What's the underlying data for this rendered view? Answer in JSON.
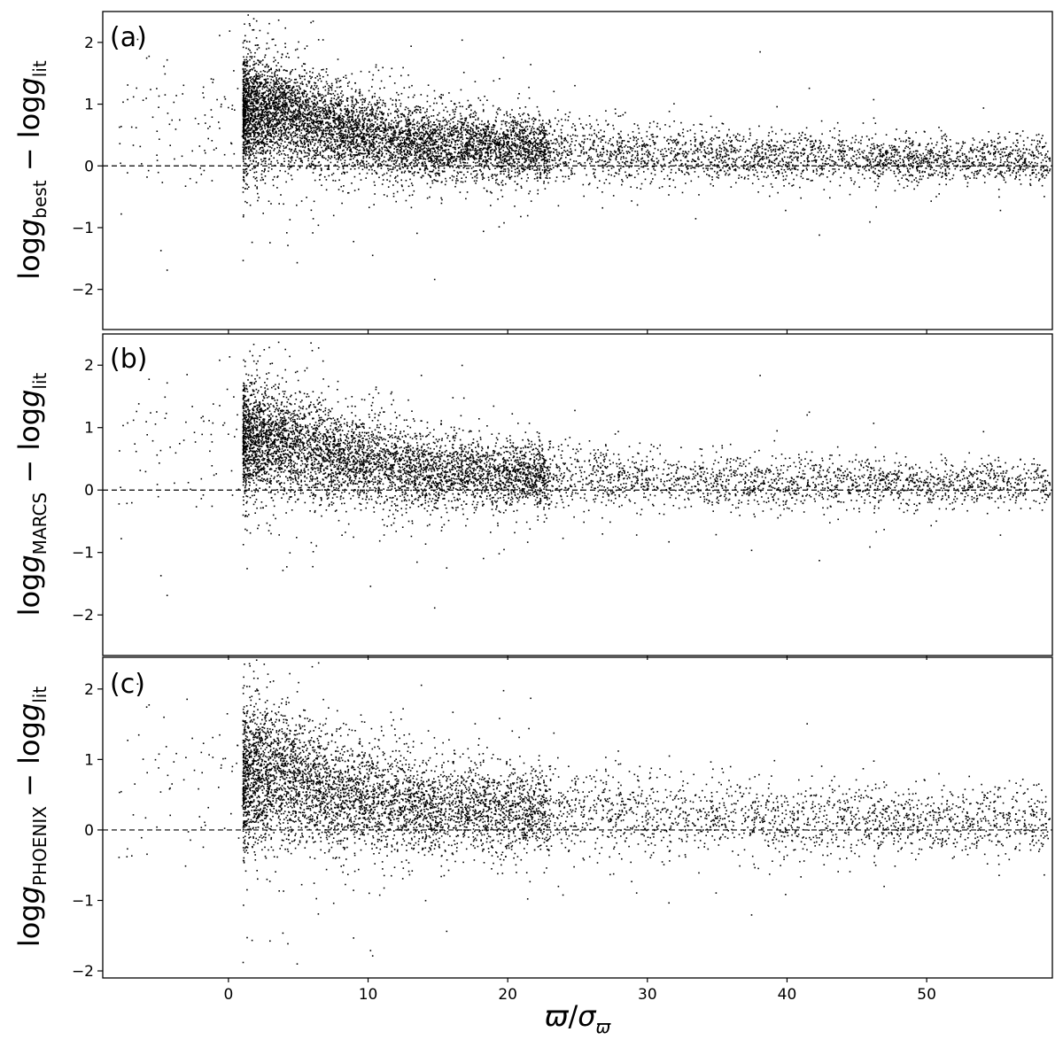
{
  "chart_data": [
    {
      "type": "scatter",
      "panel_label": "(a)",
      "ylabel": {
        "prefix": "log",
        "var": "g",
        "sub": "best",
        "minus": " − ",
        "prefix2": "log",
        "var2": "g",
        "sub2": "lit"
      },
      "xlim": [
        -9,
        59
      ],
      "ylim": [
        -2.65,
        2.5
      ],
      "yticks": [
        2,
        1,
        0,
        -1,
        -2
      ],
      "reference_line_y": 0,
      "series": [
        {
          "description": "dense point cloud; approximate running mean and scatter vs x",
          "x": [
            -5,
            -2,
            0,
            2,
            4,
            6,
            8,
            10,
            14,
            20,
            30,
            40,
            50,
            59
          ],
          "mean": [
            0.6,
            0.7,
            0.8,
            0.9,
            0.85,
            0.7,
            0.6,
            0.5,
            0.38,
            0.28,
            0.2,
            0.15,
            0.12,
            0.1
          ],
          "spread": [
            0.6,
            0.55,
            0.5,
            0.45,
            0.4,
            0.38,
            0.35,
            0.33,
            0.3,
            0.26,
            0.22,
            0.2,
            0.18,
            0.18
          ],
          "count": 9000
        }
      ]
    },
    {
      "type": "scatter",
      "panel_label": "(b)",
      "ylabel": {
        "prefix": "log",
        "var": "g",
        "sub": "MARCS",
        "minus": " − ",
        "prefix2": "log",
        "var2": "g",
        "sub2": "lit"
      },
      "xlim": [
        -9,
        59
      ],
      "ylim": [
        -2.65,
        2.5
      ],
      "yticks": [
        2,
        1,
        0,
        -1,
        -2
      ],
      "reference_line_y": 0,
      "series": [
        {
          "description": "dense point cloud; approximate running mean and scatter vs x",
          "x": [
            -5,
            -2,
            0,
            2,
            4,
            6,
            8,
            10,
            14,
            20,
            30,
            40,
            50,
            59
          ],
          "mean": [
            0.6,
            0.7,
            0.75,
            0.85,
            0.8,
            0.65,
            0.55,
            0.45,
            0.33,
            0.25,
            0.18,
            0.14,
            0.12,
            0.1
          ],
          "spread": [
            0.6,
            0.55,
            0.5,
            0.45,
            0.42,
            0.4,
            0.37,
            0.35,
            0.3,
            0.26,
            0.22,
            0.2,
            0.18,
            0.18
          ],
          "count": 7000
        }
      ]
    },
    {
      "type": "scatter",
      "panel_label": "(c)",
      "ylabel": {
        "prefix": "log",
        "var": "g",
        "sub": "PHOENIX",
        "minus": " − ",
        "prefix2": "log",
        "var2": "g",
        "sub2": "lit"
      },
      "xlim": [
        -9,
        59
      ],
      "ylim": [
        -2.1,
        2.45
      ],
      "yticks": [
        2,
        1,
        0,
        -1,
        -2
      ],
      "reference_line_y": 0,
      "series": [
        {
          "description": "dense point cloud; approximate running mean and scatter vs x",
          "x": [
            -5,
            -2,
            0,
            2,
            4,
            6,
            8,
            10,
            14,
            20,
            30,
            40,
            50,
            59
          ],
          "mean": [
            0.5,
            0.6,
            0.7,
            0.8,
            0.78,
            0.65,
            0.55,
            0.45,
            0.35,
            0.28,
            0.2,
            0.17,
            0.15,
            0.12
          ],
          "spread": [
            0.65,
            0.6,
            0.55,
            0.5,
            0.45,
            0.42,
            0.4,
            0.38,
            0.34,
            0.3,
            0.27,
            0.25,
            0.23,
            0.23
          ],
          "count": 6500
        }
      ]
    }
  ],
  "shared_x_axis": {
    "xticks": [
      0,
      10,
      20,
      30,
      40,
      50
    ],
    "xlabel": {
      "num": "ϖ",
      "slash": "/",
      "den": "σ",
      "den_sub": "ϖ"
    }
  }
}
